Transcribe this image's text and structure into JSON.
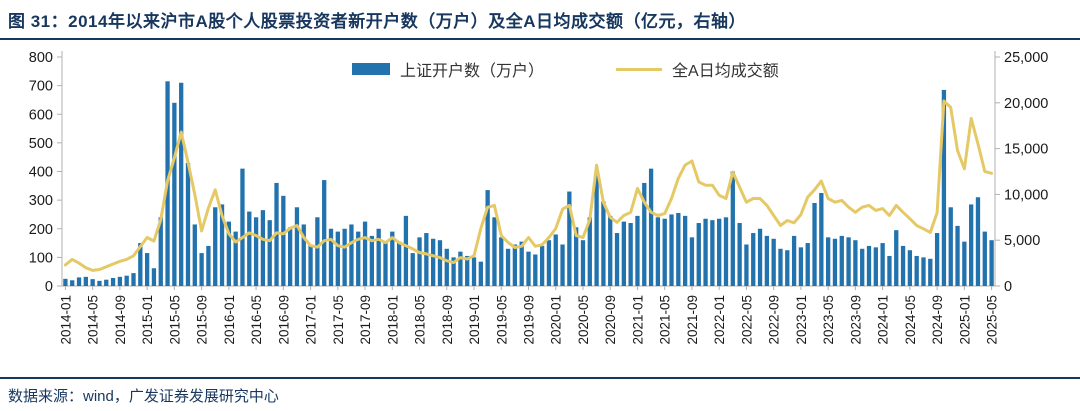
{
  "header": {
    "title": "图 31：2014年以来沪市A股个人股票投资者新开户数（万户）及全A日均成交额（亿元，右轴）"
  },
  "footer": {
    "source": "数据来源：wind，广发证券发展研究中心"
  },
  "colors": {
    "title_navy": "#17375e",
    "bar_blue": "#2272ae",
    "line_gold": "#e5c966",
    "axis_gray": "#b0b0b0",
    "tick_text": "#1a1a1a"
  },
  "chart_data": {
    "type": "bar",
    "note": "combo bar+line chart, line on secondary (right) axis",
    "x": [
      "2014-01",
      "2014-02",
      "2014-03",
      "2014-04",
      "2014-05",
      "2014-06",
      "2014-07",
      "2014-08",
      "2014-09",
      "2014-10",
      "2014-11",
      "2014-12",
      "2015-01",
      "2015-02",
      "2015-03",
      "2015-04",
      "2015-05",
      "2015-06",
      "2015-07",
      "2015-08",
      "2015-09",
      "2015-10",
      "2015-11",
      "2015-12",
      "2016-01",
      "2016-02",
      "2016-03",
      "2016-04",
      "2016-05",
      "2016-06",
      "2016-07",
      "2016-08",
      "2016-09",
      "2016-10",
      "2016-11",
      "2016-12",
      "2017-01",
      "2017-02",
      "2017-03",
      "2017-04",
      "2017-05",
      "2017-06",
      "2017-07",
      "2017-08",
      "2017-09",
      "2017-10",
      "2017-11",
      "2017-12",
      "2018-01",
      "2018-02",
      "2018-03",
      "2018-04",
      "2018-05",
      "2018-06",
      "2018-07",
      "2018-08",
      "2018-09",
      "2018-10",
      "2018-11",
      "2018-12",
      "2019-01",
      "2019-02",
      "2019-03",
      "2019-04",
      "2019-05",
      "2019-06",
      "2019-07",
      "2019-08",
      "2019-09",
      "2019-10",
      "2019-11",
      "2019-12",
      "2020-01",
      "2020-02",
      "2020-03",
      "2020-04",
      "2020-05",
      "2020-06",
      "2020-07",
      "2020-08",
      "2020-09",
      "2020-10",
      "2020-11",
      "2020-12",
      "2021-01",
      "2021-02",
      "2021-03",
      "2021-04",
      "2021-05",
      "2021-06",
      "2021-07",
      "2021-08",
      "2021-09",
      "2021-10",
      "2021-11",
      "2021-12",
      "2022-01",
      "2022-02",
      "2022-03",
      "2022-04",
      "2022-05",
      "2022-06",
      "2022-07",
      "2022-08",
      "2022-09",
      "2022-10",
      "2022-11",
      "2022-12",
      "2023-01",
      "2023-02",
      "2023-03",
      "2023-04",
      "2023-05",
      "2023-06",
      "2023-07",
      "2023-08",
      "2023-09",
      "2023-10",
      "2023-11",
      "2023-12",
      "2024-01",
      "2024-02",
      "2024-03",
      "2024-04",
      "2024-05",
      "2024-06",
      "2024-07",
      "2024-08",
      "2024-09",
      "2024-10",
      "2024-11",
      "2024-12",
      "2025-01",
      "2025-02",
      "2025-03",
      "2025-04",
      "2025-05"
    ],
    "x_tick_every": 4,
    "series": [
      {
        "name": "上证开户数（万户）",
        "type": "bar",
        "axis": "left",
        "color": "#2272ae",
        "values": [
          25,
          20,
          30,
          32,
          24,
          18,
          22,
          28,
          32,
          36,
          45,
          150,
          115,
          62,
          240,
          715,
          640,
          710,
          430,
          215,
          115,
          140,
          275,
          285,
          225,
          190,
          410,
          260,
          240,
          265,
          230,
          360,
          315,
          205,
          275,
          215,
          145,
          240,
          370,
          200,
          190,
          200,
          215,
          190,
          225,
          175,
          200,
          150,
          190,
          155,
          245,
          115,
          170,
          185,
          165,
          160,
          130,
          100,
          120,
          105,
          100,
          85,
          335,
          240,
          170,
          130,
          145,
          155,
          120,
          110,
          140,
          160,
          180,
          145,
          330,
          205,
          160,
          240,
          400,
          295,
          245,
          185,
          225,
          220,
          245,
          360,
          410,
          240,
          235,
          250,
          255,
          245,
          170,
          220,
          235,
          230,
          235,
          240,
          400,
          220,
          145,
          185,
          200,
          175,
          165,
          130,
          125,
          175,
          135,
          150,
          290,
          325,
          170,
          165,
          175,
          170,
          160,
          130,
          140,
          135,
          150,
          105,
          195,
          140,
          125,
          105,
          100,
          95,
          185,
          685,
          275,
          210,
          155,
          285,
          310,
          190,
          160
        ]
      },
      {
        "name": "全A日均成交额",
        "type": "line",
        "axis": "right",
        "color": "#e5c966",
        "values": [
          2300,
          2900,
          2500,
          2000,
          1700,
          1800,
          2100,
          2400,
          2700,
          2900,
          3300,
          4300,
          5300,
          4900,
          7200,
          11500,
          14000,
          16800,
          13500,
          10000,
          6000,
          8500,
          10500,
          7700,
          5700,
          4800,
          5300,
          5800,
          5500,
          5100,
          4950,
          5800,
          5700,
          6300,
          6600,
          5300,
          4400,
          4250,
          4950,
          5100,
          4400,
          4250,
          4730,
          5100,
          5280,
          4950,
          5100,
          4730,
          5280,
          4730,
          4400,
          4050,
          3650,
          3500,
          3300,
          3100,
          2750,
          2550,
          3100,
          2950,
          3300,
          6270,
          8600,
          8800,
          5500,
          4750,
          4200,
          4350,
          5300,
          4350,
          4500,
          5300,
          6270,
          8400,
          8800,
          5500,
          5300,
          7250,
          13200,
          9150,
          7500,
          6950,
          7700,
          8050,
          10650,
          9150,
          8050,
          7700,
          7900,
          9550,
          11750,
          13200,
          13650,
          11350,
          11000,
          11000,
          9900,
          9550,
          12450,
          10800,
          9150,
          9550,
          9550,
          8800,
          7700,
          6600,
          7150,
          6900,
          7800,
          9700,
          10500,
          11450,
          9550,
          9150,
          9350,
          8600,
          8050,
          8600,
          8800,
          8250,
          8450,
          7700,
          8800,
          8050,
          7350,
          6600,
          6250,
          5850,
          8000,
          20200,
          19500,
          14800,
          12800,
          18300,
          15500,
          12500,
          12300
        ]
      }
    ],
    "left_axis": {
      "min": 0,
      "max": 800,
      "step": 100,
      "labels": [
        "0",
        "100",
        "200",
        "300",
        "400",
        "500",
        "600",
        "700",
        "800"
      ]
    },
    "right_axis": {
      "min": 0,
      "max": 25000,
      "step": 5000,
      "labels": [
        "0",
        "5,000",
        "10,000",
        "15,000",
        "20,000",
        "25,000"
      ]
    },
    "grid": false,
    "legend_position": "top-center"
  }
}
